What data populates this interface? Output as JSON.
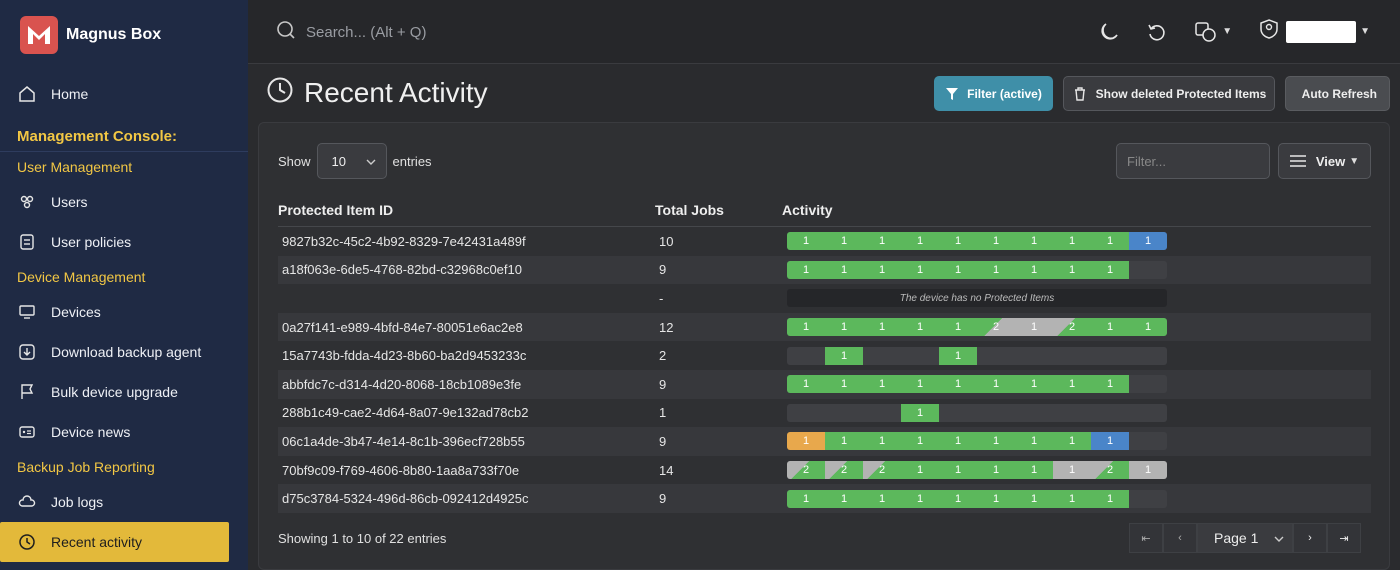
{
  "brand": {
    "name": "Magnus Box"
  },
  "search": {
    "placeholder": "Search... (Alt + Q)"
  },
  "nav": {
    "home": "Home",
    "section_title": "Management Console:",
    "user_mgmt": "User Management",
    "users": "Users",
    "user_policies": "User policies",
    "device_mgmt": "Device Management",
    "devices": "Devices",
    "download_agent": "Download backup agent",
    "bulk_upgrade": "Bulk device upgrade",
    "device_news": "Device news",
    "backup_reporting": "Backup Job Reporting",
    "job_logs": "Job logs",
    "recent_activity": "Recent activity"
  },
  "page": {
    "title": "Recent Activity"
  },
  "buttons": {
    "filter": "Filter (active)",
    "show_deleted": "Show deleted Protected Items",
    "auto_refresh": "Auto Refresh",
    "view": "View"
  },
  "table_controls": {
    "show": "Show",
    "entries_value": "10",
    "entries": "entries",
    "filter_placeholder": "Filter..."
  },
  "columns": {
    "id": "Protected Item ID",
    "total": "Total Jobs",
    "activity": "Activity"
  },
  "rows": [
    {
      "id": "9827b32c-45c2-4b92-8329-7e42431a489f",
      "total": "10"
    },
    {
      "id": "a18f063e-6de5-4768-82bd-c32968c0ef10",
      "total": "9"
    },
    {
      "id": "",
      "total": "-",
      "note": "The device has no Protected Items"
    },
    {
      "id": "0a27f141-e989-4bfd-84e7-80051e6ac2e8",
      "total": "12"
    },
    {
      "id": "15a7743b-fdda-4d23-8b60-ba2d9453233c",
      "total": "2"
    },
    {
      "id": "abbfdc7c-d314-4d20-8068-18cb1089e3fe",
      "total": "9"
    },
    {
      "id": "288b1c49-cae2-4d64-8a07-9e132ad78cb2",
      "total": "1"
    },
    {
      "id": "06c1a4de-3b47-4e14-8c1b-396ecf728b55",
      "total": "9"
    },
    {
      "id": "70bf9c09-f769-4606-8b80-1aa8a733f70e",
      "total": "14"
    },
    {
      "id": "d75c3784-5324-496d-86cb-092412d4925c",
      "total": "9"
    }
  ],
  "footer": {
    "showing": "Showing 1 to 10 of 22 entries",
    "page": "Page 1"
  },
  "colors": {
    "success": "#5cb85c",
    "info": "#4a85c9",
    "warning": "#e8a84c",
    "neutral": "#b3b3b3",
    "accent": "#e3b93a"
  }
}
